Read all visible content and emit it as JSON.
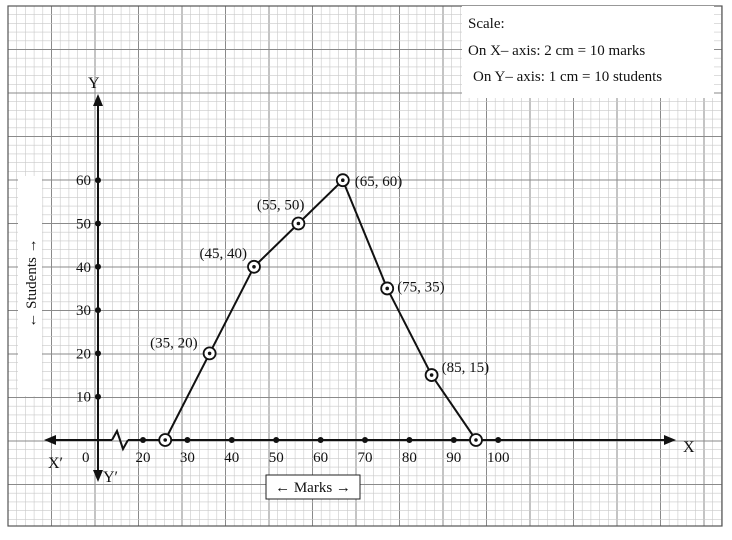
{
  "chart_data": {
    "type": "line",
    "xlabel": "← Marks →",
    "ylabel": "← Students →",
    "x_ticks": [
      20,
      30,
      40,
      50,
      60,
      70,
      80,
      90,
      100
    ],
    "y_ticks": [
      10,
      20,
      30,
      40,
      50,
      60
    ],
    "xlim": [
      20,
      100
    ],
    "ylim": [
      0,
      60
    ],
    "origin_label": "0",
    "axis_labels": {
      "x_pos": "X",
      "x_neg": "X′",
      "y_pos": "Y",
      "y_neg": "Y′"
    },
    "series": [
      {
        "points": [
          {
            "x": 25,
            "y": 0,
            "label": ""
          },
          {
            "x": 35,
            "y": 20,
            "label": "(35, 20)"
          },
          {
            "x": 45,
            "y": 40,
            "label": "(45, 40)"
          },
          {
            "x": 55,
            "y": 50,
            "label": "(55, 50)"
          },
          {
            "x": 65,
            "y": 60,
            "label": "(65, 60)"
          },
          {
            "x": 75,
            "y": 35,
            "label": "(75, 35)"
          },
          {
            "x": 85,
            "y": 15,
            "label": "(85, 15)"
          },
          {
            "x": 95,
            "y": 0,
            "label": ""
          }
        ]
      }
    ],
    "scale_note": {
      "title": "Scale:",
      "lines": [
        "On X– axis: 2 cm = 10 marks",
        "On Y– axis: 1 cm = 10 students"
      ]
    },
    "grid": true
  }
}
